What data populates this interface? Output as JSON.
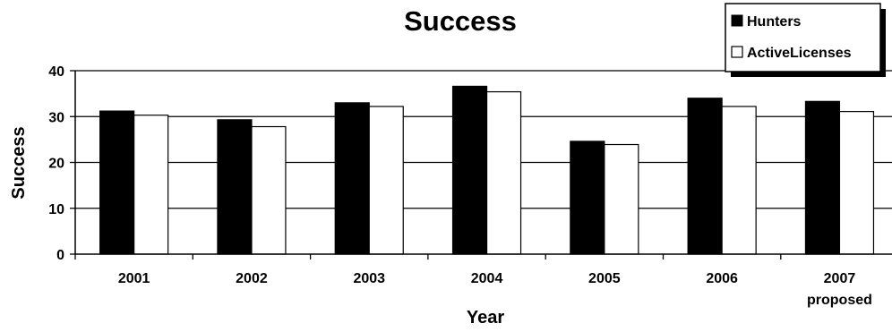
{
  "chart_data": {
    "type": "bar",
    "title": "Success",
    "xlabel": "Year",
    "ylabel": "Success",
    "categories": [
      "2001",
      "2002",
      "2003",
      "2004",
      "2005",
      "2006",
      "2007"
    ],
    "category_sublabels": [
      "",
      "",
      "",
      "",
      "",
      "",
      "proposed"
    ],
    "series": [
      {
        "name": "Hunters",
        "values": [
          31.2,
          29.3,
          33.0,
          36.6,
          24.6,
          34.0,
          33.3
        ],
        "color": "#000000"
      },
      {
        "name": "ActiveLicenses",
        "values": [
          30.3,
          27.8,
          32.2,
          35.4,
          23.9,
          32.2,
          31.1
        ],
        "color": "#ffffff"
      }
    ],
    "ylim": [
      0,
      40
    ],
    "yticks": [
      0,
      10,
      20,
      30,
      40
    ],
    "grid": true,
    "legend_position": "top-right"
  }
}
